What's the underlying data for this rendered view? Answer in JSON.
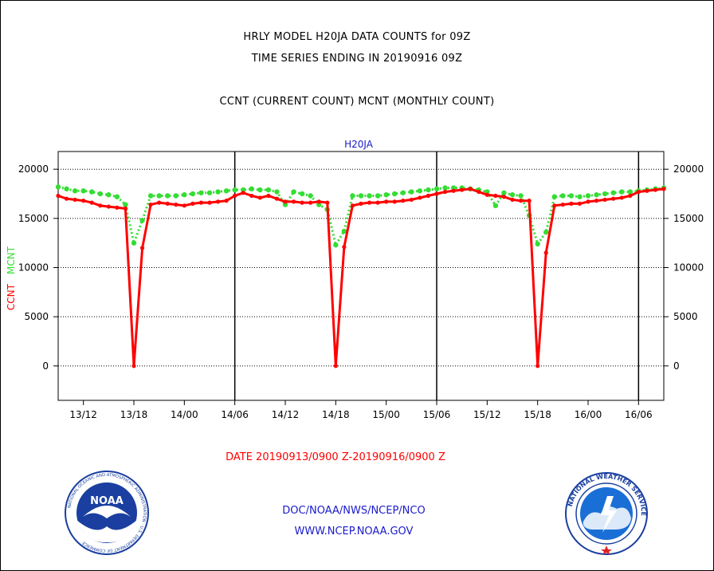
{
  "header": {
    "title_line1": "HRLY MODEL H20JA DATA COUNTS for 09Z",
    "title_line2": "TIME SERIES ENDING IN 20190916 09Z",
    "subtitle": "CCNT (CURRENT COUNT) MCNT (MONTHLY COUNT)"
  },
  "footer": {
    "date_range": "DATE 20190913/0900 Z-20190916/0900 Z",
    "doc_path": "DOC/NOAA/NWS/NCEP/NCO",
    "url": "WWW.NCEP.NOAA.GOV"
  },
  "logos": {
    "left": {
      "name": "noaa-logo",
      "label": "NOAA",
      "ring_text": "NATIONAL OCEANIC AND ATMOSPHERIC ADMINISTRATION · U.S. DEPARTMENT OF COMMERCE"
    },
    "right": {
      "name": "nws-logo",
      "ring_text": "NATIONAL WEATHER SERVICE"
    }
  },
  "colors": {
    "ccnt": "#ff0000",
    "mcnt": "#33dd33",
    "series_label": "#1a1acc",
    "grid": "#000000"
  },
  "chart_data": {
    "type": "line",
    "title": "H20JA",
    "ylabel_series": [
      "CCNT",
      "MCNT"
    ],
    "ylim": [
      -3500,
      21800
    ],
    "yticks": [
      0,
      5000,
      10000,
      15000,
      20000
    ],
    "xlim": [
      "2019-09-13 09:00",
      "2019-09-16 09:00"
    ],
    "xtick_labels": [
      "13/12",
      "13/18",
      "14/00",
      "14/06",
      "14/12",
      "14/18",
      "15/00",
      "15/06",
      "15/12",
      "15/18",
      "16/00",
      "16/06"
    ],
    "xticks": [
      "2019-09-13 12:00",
      "2019-09-13 18:00",
      "2019-09-14 00:00",
      "2019-09-14 06:00",
      "2019-09-14 12:00",
      "2019-09-14 18:00",
      "2019-09-15 00:00",
      "2019-09-15 06:00",
      "2019-09-15 12:00",
      "2019-09-15 18:00",
      "2019-09-16 00:00",
      "2019-09-16 06:00"
    ],
    "day_boundaries": [
      "2019-09-14 06:00",
      "2019-09-15 06:00",
      "2019-09-16 06:00"
    ],
    "x": [
      "2019-09-13 09:00",
      "2019-09-13 10:00",
      "2019-09-13 11:00",
      "2019-09-13 12:00",
      "2019-09-13 13:00",
      "2019-09-13 14:00",
      "2019-09-13 15:00",
      "2019-09-13 16:00",
      "2019-09-13 17:00",
      "2019-09-13 18:00",
      "2019-09-13 19:00",
      "2019-09-13 20:00",
      "2019-09-13 21:00",
      "2019-09-13 22:00",
      "2019-09-13 23:00",
      "2019-09-14 00:00",
      "2019-09-14 01:00",
      "2019-09-14 02:00",
      "2019-09-14 03:00",
      "2019-09-14 04:00",
      "2019-09-14 05:00",
      "2019-09-14 06:00",
      "2019-09-14 07:00",
      "2019-09-14 08:00",
      "2019-09-14 09:00",
      "2019-09-14 10:00",
      "2019-09-14 11:00",
      "2019-09-14 12:00",
      "2019-09-14 13:00",
      "2019-09-14 14:00",
      "2019-09-14 15:00",
      "2019-09-14 16:00",
      "2019-09-14 17:00",
      "2019-09-14 18:00",
      "2019-09-14 19:00",
      "2019-09-14 20:00",
      "2019-09-14 21:00",
      "2019-09-14 22:00",
      "2019-09-14 23:00",
      "2019-09-15 00:00",
      "2019-09-15 01:00",
      "2019-09-15 02:00",
      "2019-09-15 03:00",
      "2019-09-15 04:00",
      "2019-09-15 05:00",
      "2019-09-15 06:00",
      "2019-09-15 07:00",
      "2019-09-15 08:00",
      "2019-09-15 09:00",
      "2019-09-15 10:00",
      "2019-09-15 11:00",
      "2019-09-15 12:00",
      "2019-09-15 13:00",
      "2019-09-15 14:00",
      "2019-09-15 15:00",
      "2019-09-15 16:00",
      "2019-09-15 17:00",
      "2019-09-15 18:00",
      "2019-09-15 19:00",
      "2019-09-15 20:00",
      "2019-09-15 21:00",
      "2019-09-15 22:00",
      "2019-09-15 23:00",
      "2019-09-16 00:00",
      "2019-09-16 01:00",
      "2019-09-16 02:00",
      "2019-09-16 03:00",
      "2019-09-16 04:00",
      "2019-09-16 05:00",
      "2019-09-16 06:00",
      "2019-09-16 07:00",
      "2019-09-16 08:00",
      "2019-09-16 09:00"
    ],
    "series": [
      {
        "name": "CCNT",
        "values": [
          17300,
          17000,
          16900,
          16800,
          16600,
          16300,
          16200,
          16100,
          16000,
          0,
          12000,
          16400,
          16600,
          16500,
          16400,
          16300,
          16500,
          16600,
          16600,
          16700,
          16800,
          17300,
          17600,
          17300,
          17100,
          17300,
          17000,
          16700,
          16700,
          16600,
          16600,
          16700,
          16600,
          0,
          12100,
          16300,
          16500,
          16600,
          16600,
          16700,
          16700,
          16800,
          16900,
          17100,
          17300,
          17500,
          17700,
          17800,
          17900,
          18000,
          17700,
          17400,
          17300,
          17200,
          16900,
          16800,
          16800,
          0,
          11500,
          16300,
          16400,
          16500,
          16500,
          16700,
          16800,
          16900,
          17000,
          17100,
          17300,
          17700,
          17800,
          17900,
          18000
        ]
      },
      {
        "name": "MCNT",
        "values": [
          18200,
          18000,
          17800,
          17800,
          17700,
          17500,
          17400,
          17200,
          16400,
          12500,
          14800,
          17300,
          17300,
          17300,
          17300,
          17400,
          17500,
          17600,
          17600,
          17700,
          17800,
          17900,
          17900,
          18000,
          17900,
          17900,
          17700,
          16400,
          17700,
          17500,
          17300,
          16400,
          15900,
          12300,
          13700,
          17300,
          17300,
          17300,
          17300,
          17400,
          17500,
          17600,
          17700,
          17800,
          17900,
          18000,
          18100,
          18100,
          18100,
          18000,
          17900,
          17700,
          16300,
          17600,
          17400,
          17300,
          15300,
          12400,
          13600,
          17200,
          17300,
          17300,
          17200,
          17300,
          17400,
          17500,
          17600,
          17700,
          17700,
          17800,
          17900,
          18000,
          18100
        ]
      }
    ]
  }
}
